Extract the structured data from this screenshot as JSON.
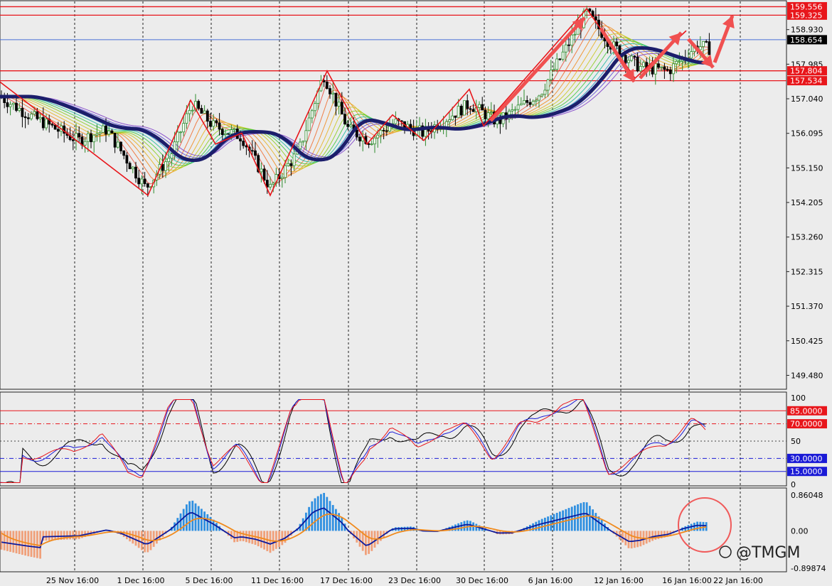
{
  "chart_data": {
    "type": "candlestick",
    "x_tick_labels": [
      "25 Nov 16:00",
      "1 Dec 16:00",
      "5 Dec 16:00",
      "11 Dec 16:00",
      "17 Dec 16:00",
      "23 Dec 16:00",
      "30 Dec 16:00",
      "6 Jan 16:00",
      "12 Jan 16:00",
      "16 Jan 16:00",
      "22 Jan 16:00"
    ],
    "price_ticks": [
      "158.930",
      "157.985",
      "157.040",
      "156.095",
      "155.150",
      "154.205",
      "153.260",
      "152.315",
      "151.370",
      "150.425",
      "149.480"
    ],
    "price_range": [
      149.1,
      159.72
    ],
    "price_levels": [
      {
        "value": 159.556,
        "label": "159.556",
        "color": "#e8161b",
        "tag_color": "#e8161b"
      },
      {
        "value": 159.325,
        "label": "159.325",
        "color": "#e8161b",
        "tag_color": "#e8161b"
      },
      {
        "value": 158.654,
        "label": "158.654",
        "color": "#4a6fd6",
        "tag_color": "#000000"
      },
      {
        "value": 157.804,
        "label": "157.804",
        "color": "#e8161b",
        "tag_color": "#e8161b"
      },
      {
        "value": 157.534,
        "label": "157.534",
        "color": "#e8161b",
        "tag_color": "#e8161b"
      }
    ],
    "zigzag_prices": [
      157.5,
      154.4,
      157.0,
      155.8,
      156.1,
      154.4,
      157.8,
      155.8,
      156.6,
      155.9,
      157.3,
      156.3,
      159.5,
      157.6,
      158.9
    ],
    "oscillator": {
      "range": [
        0,
        100
      ],
      "ticks": [
        "100",
        "50",
        "0"
      ],
      "levels": [
        {
          "value": 85,
          "label": "85.0000",
          "color": "#e8161b",
          "tag_color": "#e8161b"
        },
        {
          "value": 70,
          "label": "70.0000",
          "color": "#e8161b",
          "tag_color": "#e8161b"
        },
        {
          "value": 30,
          "label": "30.0000",
          "color": "#1a1ad6",
          "tag_color": "#1a1ad6"
        },
        {
          "value": 15,
          "label": "15.0000",
          "color": "#1a1ad6",
          "tag_color": "#1a1ad6"
        }
      ]
    },
    "macd": {
      "range": [
        -0.89874,
        0.86048
      ],
      "ticks": [
        "0.86048",
        "0.00",
        "-0.89874"
      ],
      "positive_color": "#2f8fe0",
      "negative_color": "#f0a07a",
      "signal_colors": [
        "#0b1a9e",
        "#f08a1c"
      ]
    },
    "colors": {
      "background": "#ececec",
      "bull": "#2e8b2e",
      "bear": "#000000",
      "trend_ma": "#1c1e6b",
      "zigzag": "#e8161b",
      "arrow": "#f05050"
    }
  },
  "watermark": "@TMGM"
}
